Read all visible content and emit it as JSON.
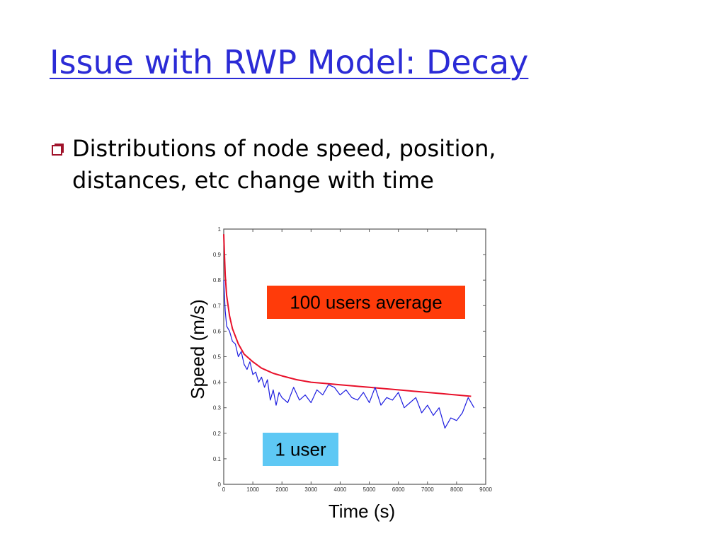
{
  "slide": {
    "title": "Issue with RWP Model: Decay",
    "bullet": "Distributions of node speed, position, distances, etc change with time"
  },
  "colors": {
    "title": "#2b2bd6",
    "bullet_icon": "#a0122a",
    "avg_series": "#e8102a",
    "user_series": "#1d1de0",
    "avg_callout": "#ff3b0a",
    "user_callout": "#5ec8f4"
  },
  "chart_data": {
    "type": "line",
    "xlabel": "Time (s)",
    "ylabel": "Speed (m/s)",
    "xlim": [
      0,
      9000
    ],
    "ylim": [
      0,
      1
    ],
    "xticks": [
      "0",
      "1000",
      "2000",
      "3000",
      "4000",
      "5000",
      "6000",
      "7000",
      "8000",
      "9000"
    ],
    "yticks": [
      "0",
      "0.1",
      "0.2",
      "0.3",
      "0.4",
      "0.5",
      "0.6",
      "0.7",
      "0.8",
      "0.9",
      "1"
    ],
    "grid": false,
    "series": [
      {
        "name": "100 users average",
        "x": [
          0,
          50,
          100,
          200,
          300,
          500,
          700,
          1000,
          1300,
          1700,
          2000,
          2500,
          3000,
          3500,
          4000,
          4500,
          5000,
          5500,
          6000,
          6500,
          7000,
          7500,
          8000,
          8500
        ],
        "y": [
          0.98,
          0.82,
          0.74,
          0.66,
          0.61,
          0.55,
          0.51,
          0.48,
          0.455,
          0.435,
          0.425,
          0.41,
          0.4,
          0.395,
          0.39,
          0.385,
          0.38,
          0.375,
          0.37,
          0.365,
          0.36,
          0.355,
          0.35,
          0.345
        ]
      },
      {
        "name": "1 user",
        "x": [
          0,
          50,
          100,
          200,
          300,
          400,
          500,
          600,
          700,
          800,
          900,
          1000,
          1100,
          1200,
          1300,
          1400,
          1500,
          1600,
          1700,
          1800,
          1900,
          2000,
          2200,
          2400,
          2600,
          2800,
          3000,
          3200,
          3400,
          3600,
          3800,
          4000,
          4200,
          4400,
          4600,
          4800,
          5000,
          5200,
          5400,
          5600,
          5800,
          6000,
          6200,
          6400,
          6600,
          6800,
          7000,
          7200,
          7400,
          7600,
          7800,
          8000,
          8200,
          8400,
          8600
        ],
        "y": [
          0.8,
          0.68,
          0.62,
          0.6,
          0.56,
          0.55,
          0.5,
          0.52,
          0.47,
          0.45,
          0.48,
          0.43,
          0.44,
          0.4,
          0.42,
          0.38,
          0.41,
          0.33,
          0.37,
          0.31,
          0.36,
          0.34,
          0.32,
          0.38,
          0.33,
          0.35,
          0.32,
          0.37,
          0.35,
          0.39,
          0.38,
          0.35,
          0.37,
          0.34,
          0.33,
          0.36,
          0.32,
          0.38,
          0.31,
          0.34,
          0.33,
          0.36,
          0.3,
          0.32,
          0.34,
          0.28,
          0.31,
          0.27,
          0.3,
          0.22,
          0.26,
          0.25,
          0.28,
          0.34,
          0.3
        ]
      }
    ],
    "annotations": [
      {
        "text": "100 users average",
        "series": "100 users average"
      },
      {
        "text": "1 user",
        "series": "1 user"
      }
    ]
  }
}
